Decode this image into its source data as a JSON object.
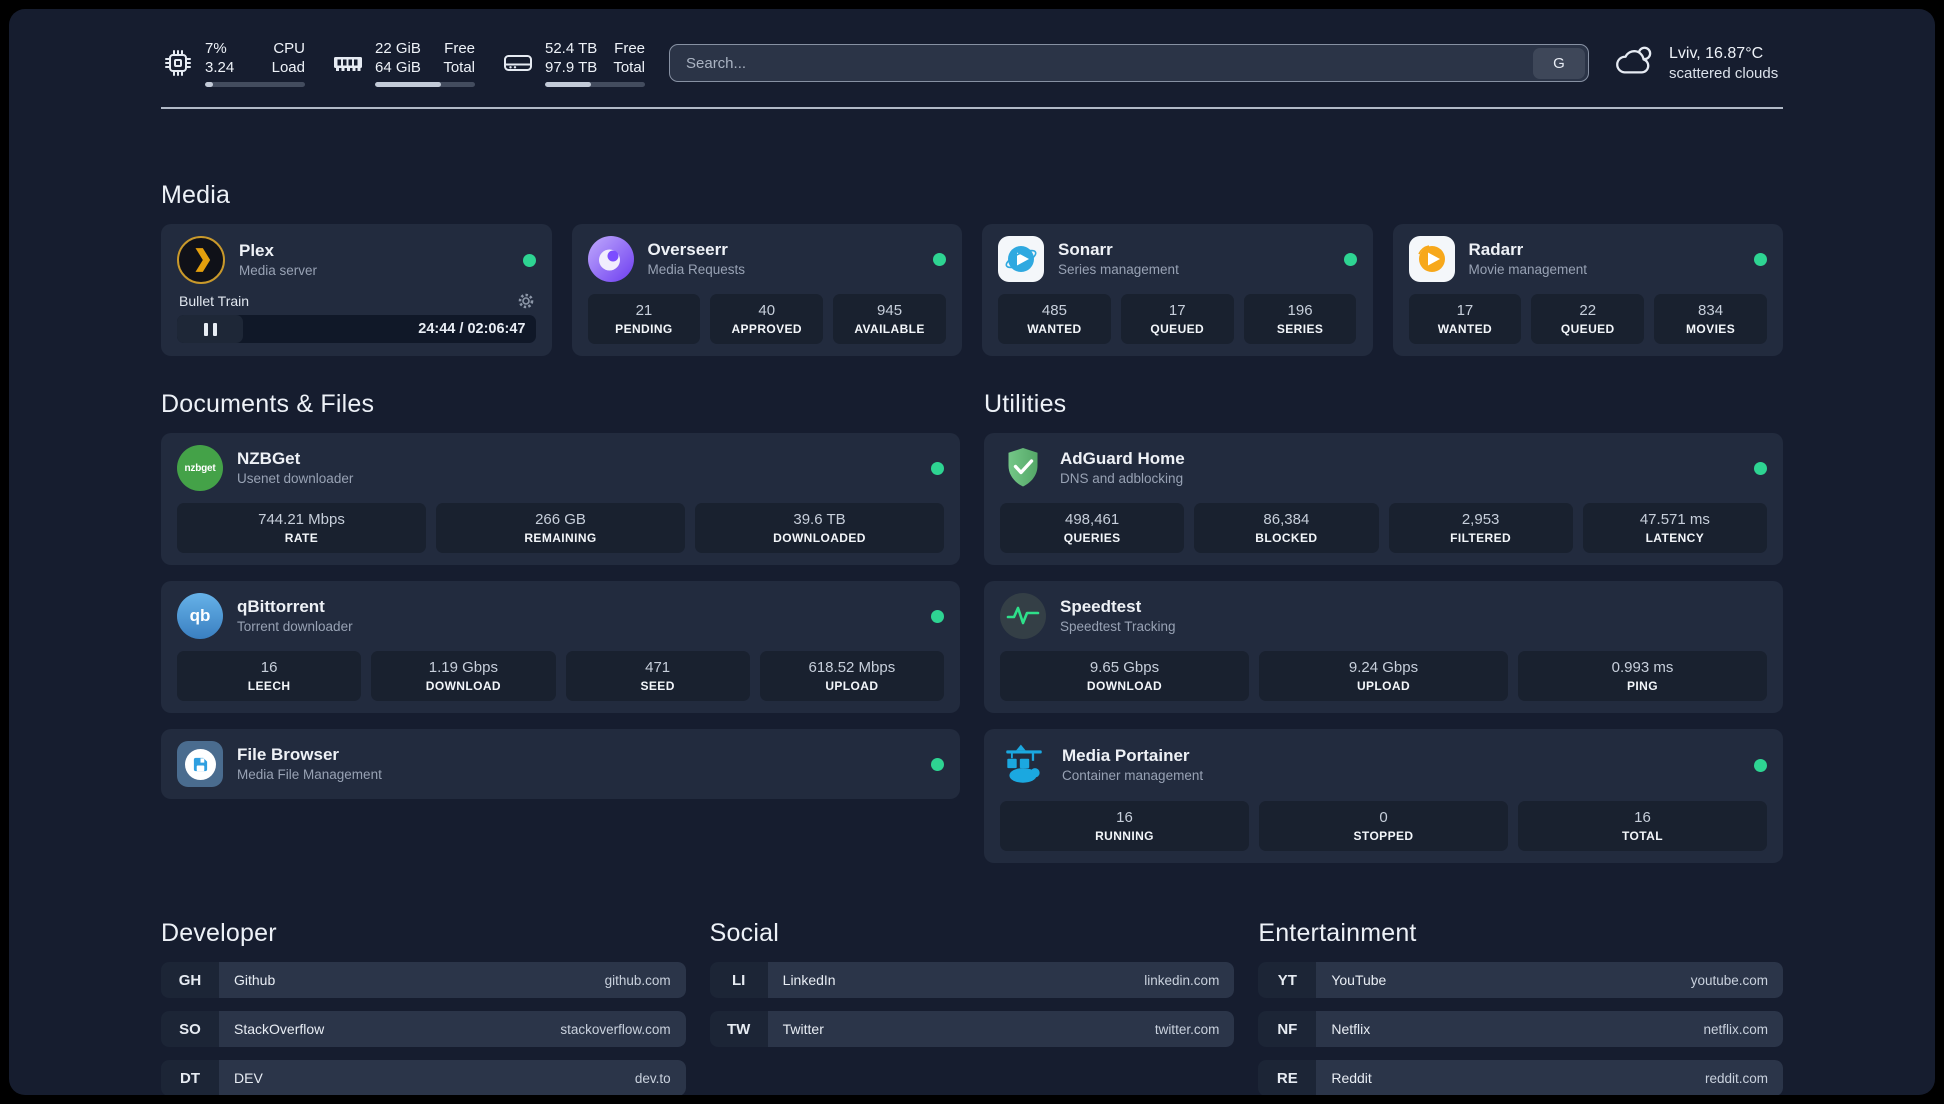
{
  "topbar": {
    "cpu": {
      "values": [
        "7%",
        "3.24"
      ],
      "labels": [
        "CPU",
        "Load"
      ],
      "progress": 8
    },
    "memory": {
      "values": [
        "22 GiB",
        "64 GiB"
      ],
      "labels": [
        "Free",
        "Total"
      ],
      "progress": 66
    },
    "disk": {
      "values": [
        "52.4 TB",
        "97.9 TB"
      ],
      "labels": [
        "Free",
        "Total"
      ],
      "progress": 46
    },
    "search": {
      "placeholder": "Search...",
      "button": "G"
    },
    "weather": {
      "location": "Lviv, 16.87°C",
      "condition": "scattered clouds"
    }
  },
  "groups": {
    "media": {
      "title": "Media",
      "plex": {
        "name": "Plex",
        "subtitle": "Media server",
        "player": {
          "title": "Bullet Train",
          "time": "24:44 / 02:06:47"
        }
      },
      "overseerr": {
        "name": "Overseerr",
        "subtitle": "Media Requests",
        "stats": [
          {
            "value": "21",
            "label": "PENDING"
          },
          {
            "value": "40",
            "label": "APPROVED"
          },
          {
            "value": "945",
            "label": "AVAILABLE"
          }
        ]
      },
      "sonarr": {
        "name": "Sonarr",
        "subtitle": "Series management",
        "stats": [
          {
            "value": "485",
            "label": "WANTED"
          },
          {
            "value": "17",
            "label": "QUEUED"
          },
          {
            "value": "196",
            "label": "SERIES"
          }
        ]
      },
      "radarr": {
        "name": "Radarr",
        "subtitle": "Movie management",
        "stats": [
          {
            "value": "17",
            "label": "WANTED"
          },
          {
            "value": "22",
            "label": "QUEUED"
          },
          {
            "value": "834",
            "label": "MOVIES"
          }
        ]
      }
    },
    "documents": {
      "title": "Documents & Files",
      "nzbget": {
        "name": "NZBGet",
        "subtitle": "Usenet downloader",
        "icon_text": "nzbget",
        "stats": [
          {
            "value": "744.21 Mbps",
            "label": "RATE"
          },
          {
            "value": "266 GB",
            "label": "REMAINING"
          },
          {
            "value": "39.6 TB",
            "label": "DOWNLOADED"
          }
        ]
      },
      "qbittorrent": {
        "name": "qBittorrent",
        "subtitle": "Torrent downloader",
        "icon_text": "qb",
        "stats": [
          {
            "value": "16",
            "label": "LEECH"
          },
          {
            "value": "1.19 Gbps",
            "label": "DOWNLOAD"
          },
          {
            "value": "471",
            "label": "SEED"
          },
          {
            "value": "618.52 Mbps",
            "label": "UPLOAD"
          }
        ]
      },
      "filebrowser": {
        "name": "File Browser",
        "subtitle": "Media File Management"
      }
    },
    "utilities": {
      "title": "Utilities",
      "adguard": {
        "name": "AdGuard Home",
        "subtitle": "DNS and adblocking",
        "stats": [
          {
            "value": "498,461",
            "label": "QUERIES"
          },
          {
            "value": "86,384",
            "label": "BLOCKED"
          },
          {
            "value": "2,953",
            "label": "FILTERED"
          },
          {
            "value": "47.571 ms",
            "label": "LATENCY"
          }
        ]
      },
      "speedtest": {
        "name": "Speedtest",
        "subtitle": "Speedtest Tracking",
        "stats": [
          {
            "value": "9.65 Gbps",
            "label": "DOWNLOAD"
          },
          {
            "value": "9.24 Gbps",
            "label": "UPLOAD"
          },
          {
            "value": "0.993 ms",
            "label": "PING"
          }
        ]
      },
      "portainer": {
        "name": "Media Portainer",
        "subtitle": "Container management",
        "stats": [
          {
            "value": "16",
            "label": "RUNNING"
          },
          {
            "value": "0",
            "label": "STOPPED"
          },
          {
            "value": "16",
            "label": "TOTAL"
          }
        ]
      }
    }
  },
  "bookmarks": {
    "developer": {
      "title": "Developer",
      "items": [
        {
          "abbr": "GH",
          "name": "Github",
          "url": "github.com"
        },
        {
          "abbr": "SO",
          "name": "StackOverflow",
          "url": "stackoverflow.com"
        },
        {
          "abbr": "DT",
          "name": "DEV",
          "url": "dev.to"
        }
      ]
    },
    "social": {
      "title": "Social",
      "items": [
        {
          "abbr": "LI",
          "name": "LinkedIn",
          "url": "linkedin.com"
        },
        {
          "abbr": "TW",
          "name": "Twitter",
          "url": "twitter.com"
        }
      ]
    },
    "entertainment": {
      "title": "Entertainment",
      "items": [
        {
          "abbr": "YT",
          "name": "YouTube",
          "url": "youtube.com"
        },
        {
          "abbr": "NF",
          "name": "Netflix",
          "url": "netflix.com"
        },
        {
          "abbr": "RE",
          "name": "Reddit",
          "url": "reddit.com"
        }
      ]
    }
  },
  "colors": {
    "status_online": "#2ed492",
    "accent_plex": "#e5a00d",
    "page_bg": "#161d2f"
  }
}
